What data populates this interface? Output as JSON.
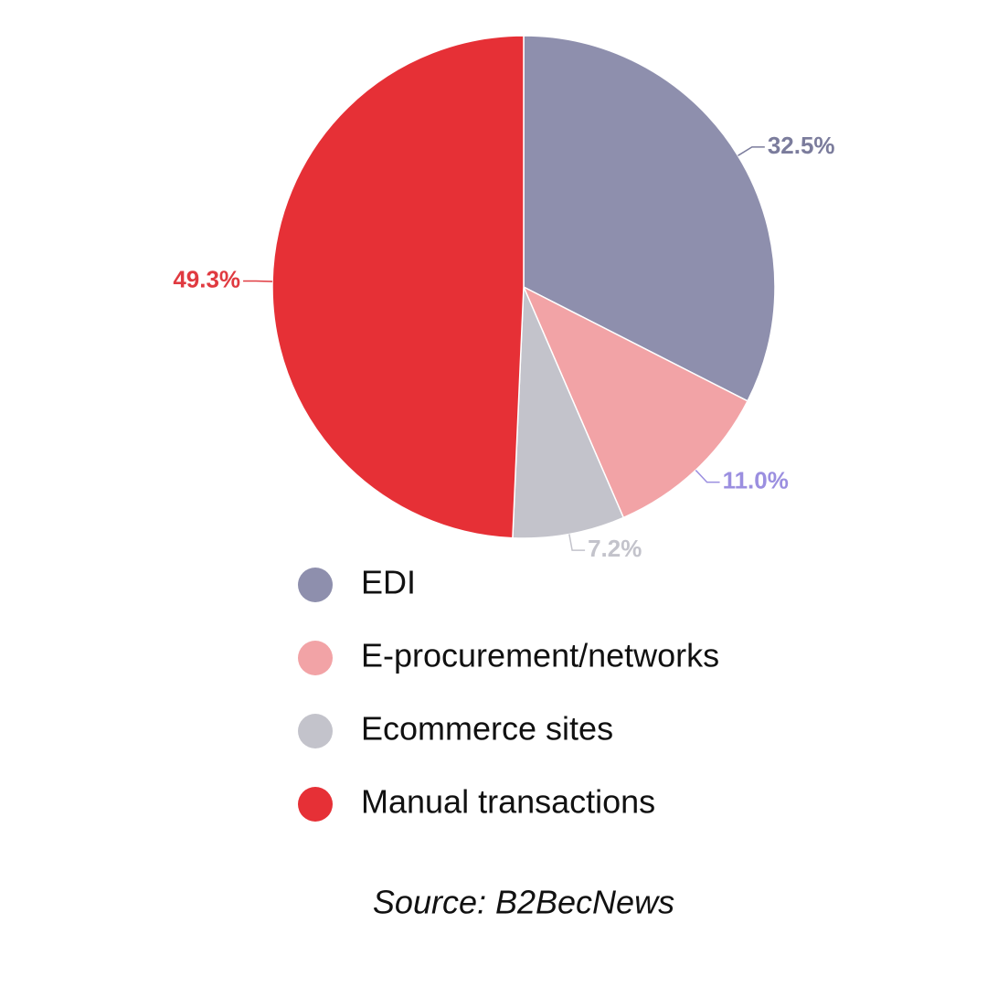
{
  "chart_data": {
    "type": "pie",
    "categories": [
      "EDI",
      "E-procurement/networks",
      "Ecommerce sites",
      "Manual transactions"
    ],
    "values": [
      32.5,
      11.0,
      7.2,
      49.3
    ],
    "value_labels": [
      "32.5%",
      "11.0%",
      "7.2%",
      "49.3%"
    ],
    "colors": [
      "#8e8fad",
      "#f2a3a6",
      "#c3c3cb",
      "#e63036"
    ],
    "label_colors": [
      "#7b7c9c",
      "#9b8fe0",
      "#c3c3cb",
      "#e03a40"
    ],
    "source": "Source: B2BecNews"
  }
}
